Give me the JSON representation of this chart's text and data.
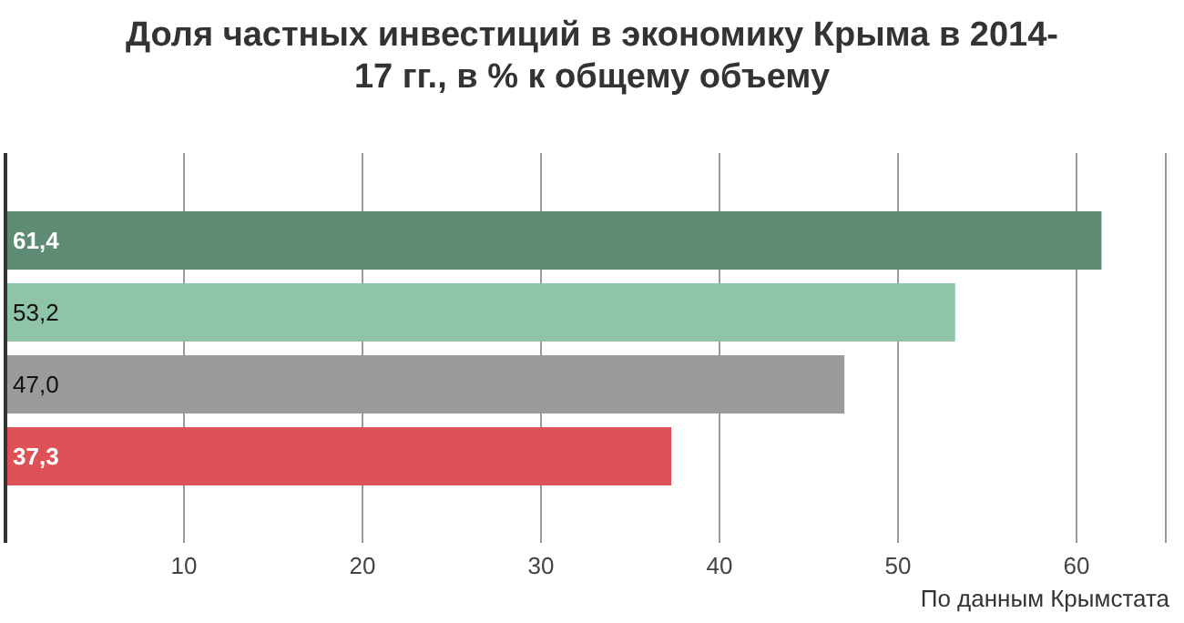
{
  "chart_data": {
    "type": "bar",
    "orientation": "horizontal",
    "title": "Доля частных инвестиций в экономику Крыма в 2014-17 гг., в % к общему объему",
    "categories": [
      null,
      null,
      null,
      null
    ],
    "values": [
      61.4,
      53.2,
      47.0,
      37.3
    ],
    "colors": [
      "#5e8b73",
      "#8fc4a8",
      "#9b9b9b",
      "#dc5257"
    ],
    "value_labels": [
      "61,4",
      "53,2",
      "47,0",
      "37,3"
    ],
    "xlim": [
      0,
      65
    ],
    "xticks": [
      10,
      20,
      30,
      40,
      50,
      60
    ],
    "grid": "x",
    "annotations": [
      "По данным Крымстата"
    ]
  }
}
